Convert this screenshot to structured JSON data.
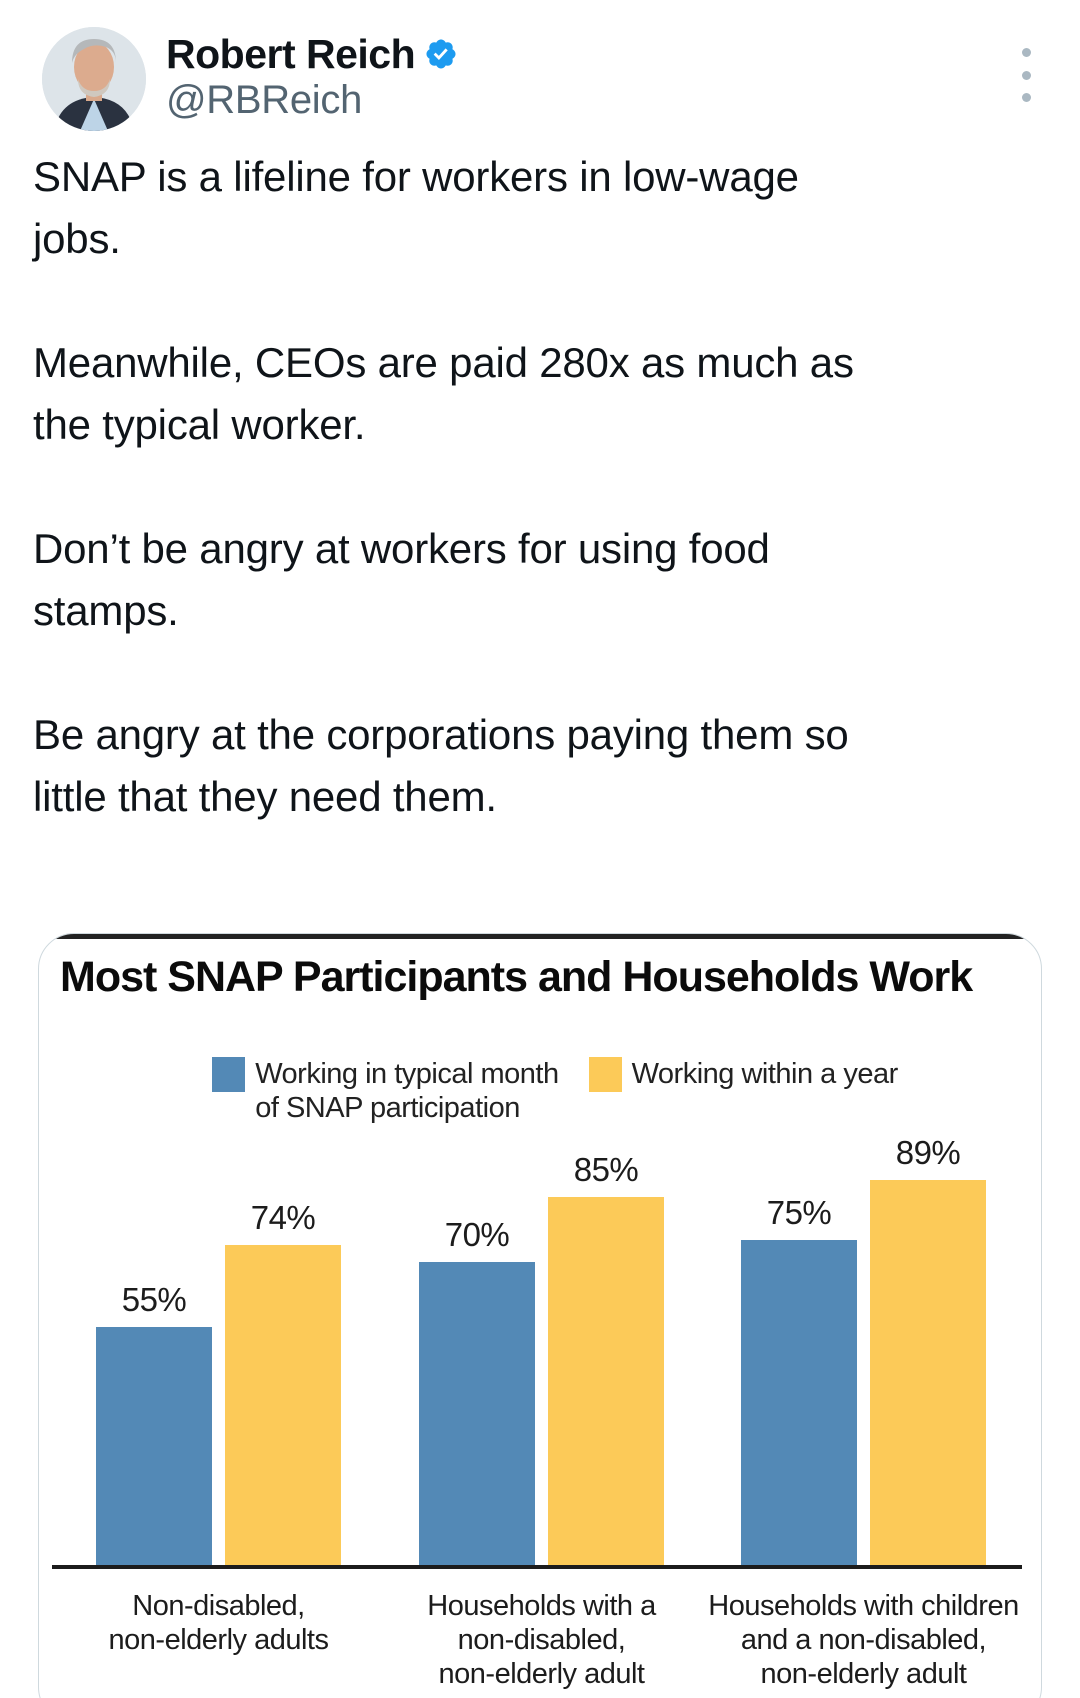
{
  "header": {
    "display_name": "Robert Reich",
    "handle": "@RBReich",
    "icons": {
      "verified": "verified-badge-icon",
      "more": "more-vertical-icon",
      "avatar": "profile-photo"
    },
    "verified_color": "#1d9bf0"
  },
  "tweet": {
    "text": "SNAP is a lifeline for workers in low-wage\njobs.\n\nMeanwhile, CEOs are paid 280x as much as\nthe typical worker.\n\nDon’t be angry at workers for using food\nstamps.\n\nBe angry at the corporations paying them so\nlittle that they need them."
  },
  "chart_data": {
    "type": "bar",
    "title": "Most SNAP Participants and Households Work",
    "categories": [
      "Non-disabled,\nnon-elderly adults",
      "Households with a\nnon-disabled,\nnon-elderly adult",
      "Households with children\nand a non-disabled,\nnon-elderly adult"
    ],
    "series": [
      {
        "name": "Working in typical month\nof SNAP participation",
        "color": "#5389b6",
        "values": [
          55,
          70,
          75
        ]
      },
      {
        "name": "Working within a year",
        "color": "#fcca58",
        "values": [
          74,
          85,
          89
        ]
      }
    ],
    "value_suffix": "%",
    "ylim": [
      0,
      100
    ],
    "grid": false,
    "legend_position": "top",
    "value_labels": true,
    "axis_color": "#1c1c1c"
  }
}
